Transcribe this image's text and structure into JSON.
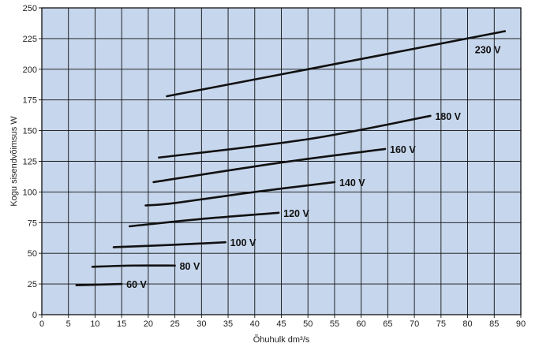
{
  "chart_data": {
    "type": "line",
    "title": "",
    "xlabel": "Õhuhulk dm³/s",
    "ylabel": "Kogu sisendvõimsus W",
    "xlim": [
      0,
      90
    ],
    "ylim": [
      0,
      250
    ],
    "x_ticks": [
      "0",
      "5",
      "10",
      "15",
      "20",
      "25",
      "30",
      "35",
      "40",
      "45",
      "50",
      "55",
      "60",
      "65",
      "70",
      "75",
      "80",
      "85",
      "90"
    ],
    "y_ticks": [
      "0",
      "25",
      "50",
      "75",
      "100",
      "125",
      "150",
      "175",
      "200",
      "225",
      "250"
    ],
    "grid": true,
    "colors": {
      "plot_bg": "#c6d6ec",
      "grid": "#111111",
      "line": "#111111",
      "frame": "#111111"
    },
    "series": [
      {
        "name": "230 V",
        "x": [
          23.5,
          50,
          87
        ],
        "y": [
          178,
          200,
          231
        ]
      },
      {
        "name": "180 V",
        "x": [
          22,
          50,
          73
        ],
        "y": [
          128,
          143,
          162
        ]
      },
      {
        "name": "160 V",
        "x": [
          21,
          45,
          64.5
        ],
        "y": [
          108,
          124,
          135
        ]
      },
      {
        "name": "140 V",
        "x": [
          19.5,
          25,
          40,
          55
        ],
        "y": [
          89,
          91,
          100,
          108
        ]
      },
      {
        "name": "120 V",
        "x": [
          16.5,
          30,
          44.5
        ],
        "y": [
          72,
          78,
          83
        ]
      },
      {
        "name": "100 V",
        "x": [
          13.5,
          25,
          34.5
        ],
        "y": [
          55,
          57,
          59
        ]
      },
      {
        "name": "80 V",
        "x": [
          9.5,
          17,
          25
        ],
        "y": [
          39,
          40,
          40
        ]
      },
      {
        "name": "60 V",
        "x": [
          6.5,
          15
        ],
        "y": [
          24,
          25
        ]
      }
    ]
  }
}
